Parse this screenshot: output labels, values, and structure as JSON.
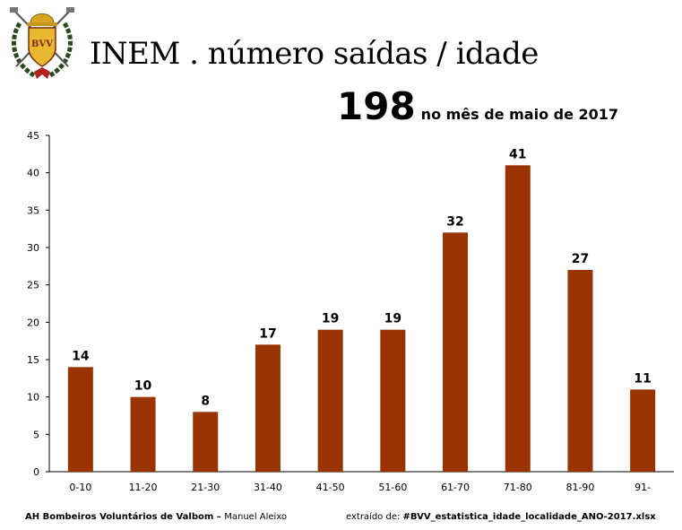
{
  "header": {
    "title": "INEM . número saídas / idade",
    "total": "198",
    "period": "no mês de maio de 2017",
    "logo_text": "BVV"
  },
  "footer": {
    "org": "AH Bombeiros Voluntários de Valbom",
    "separator": " – ",
    "author": "Manuel Aleixo",
    "source_label": "extraído de: ",
    "source_file": "#BVV_estatistica_idade_localidade_ANO-2017.xlsx"
  },
  "chart_data": {
    "type": "bar",
    "categories": [
      "0-10",
      "11-20",
      "21-30",
      "31-40",
      "41-50",
      "51-60",
      "61-70",
      "71-80",
      "81-90",
      "91-"
    ],
    "values": [
      14,
      10,
      8,
      17,
      19,
      19,
      32,
      41,
      27,
      11
    ],
    "ylim": [
      0,
      45
    ],
    "yticks": [
      0,
      5,
      10,
      15,
      20,
      25,
      30,
      35,
      40,
      45
    ],
    "bar_color": "#993300",
    "grid": false,
    "data_labels": true
  }
}
